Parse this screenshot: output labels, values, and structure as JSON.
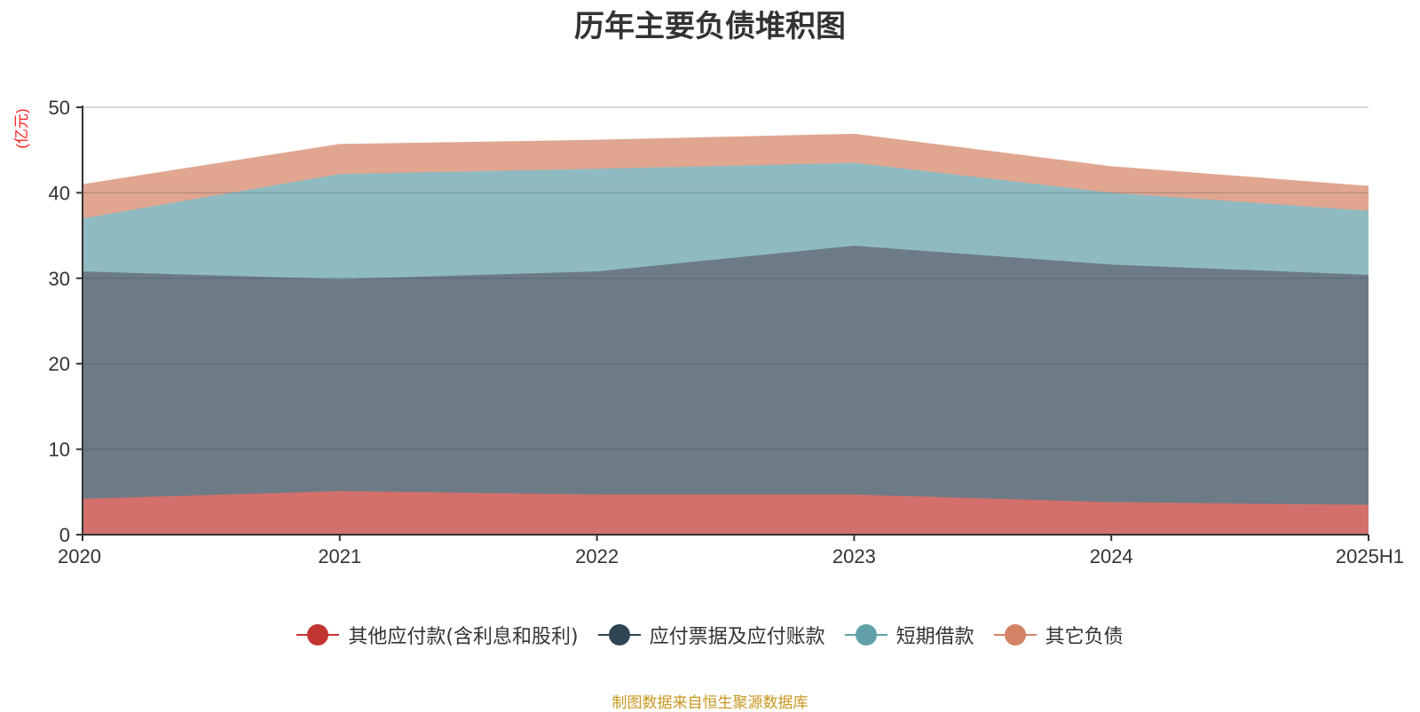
{
  "chart_data": {
    "type": "area",
    "stacked": true,
    "title": "历年主要负债堆积图",
    "ylabel": "(亿元)",
    "categories": [
      "2020",
      "2021",
      "2022",
      "2023",
      "2024",
      "2025H1"
    ],
    "ylim": [
      0,
      50
    ],
    "yticks": [
      0,
      10,
      20,
      30,
      40,
      50
    ],
    "grid": true,
    "legend_position": "bottom",
    "series": [
      {
        "name": "其他应付款(含利息和股利)",
        "color": "#c23531",
        "fill": "#d4706b",
        "values": [
          4.2,
          5.1,
          4.7,
          4.7,
          3.8,
          3.5
        ]
      },
      {
        "name": "应付票据及应付账款",
        "color": "#2f4554",
        "fill": "#6d7b86",
        "values": [
          26.6,
          24.8,
          26.1,
          29.1,
          27.8,
          26.9
        ]
      },
      {
        "name": "短期借款",
        "color": "#61a0a8",
        "fill": "#90bac1",
        "values": [
          6.2,
          12.3,
          12.0,
          9.7,
          8.4,
          7.5
        ]
      },
      {
        "name": "其它负债",
        "color": "#d48265",
        "fill": "#e0a690",
        "values": [
          3.9,
          3.4,
          3.3,
          3.3,
          3.0,
          2.8
        ]
      }
    ]
  },
  "source": "制图数据来自恒生聚源数据库"
}
